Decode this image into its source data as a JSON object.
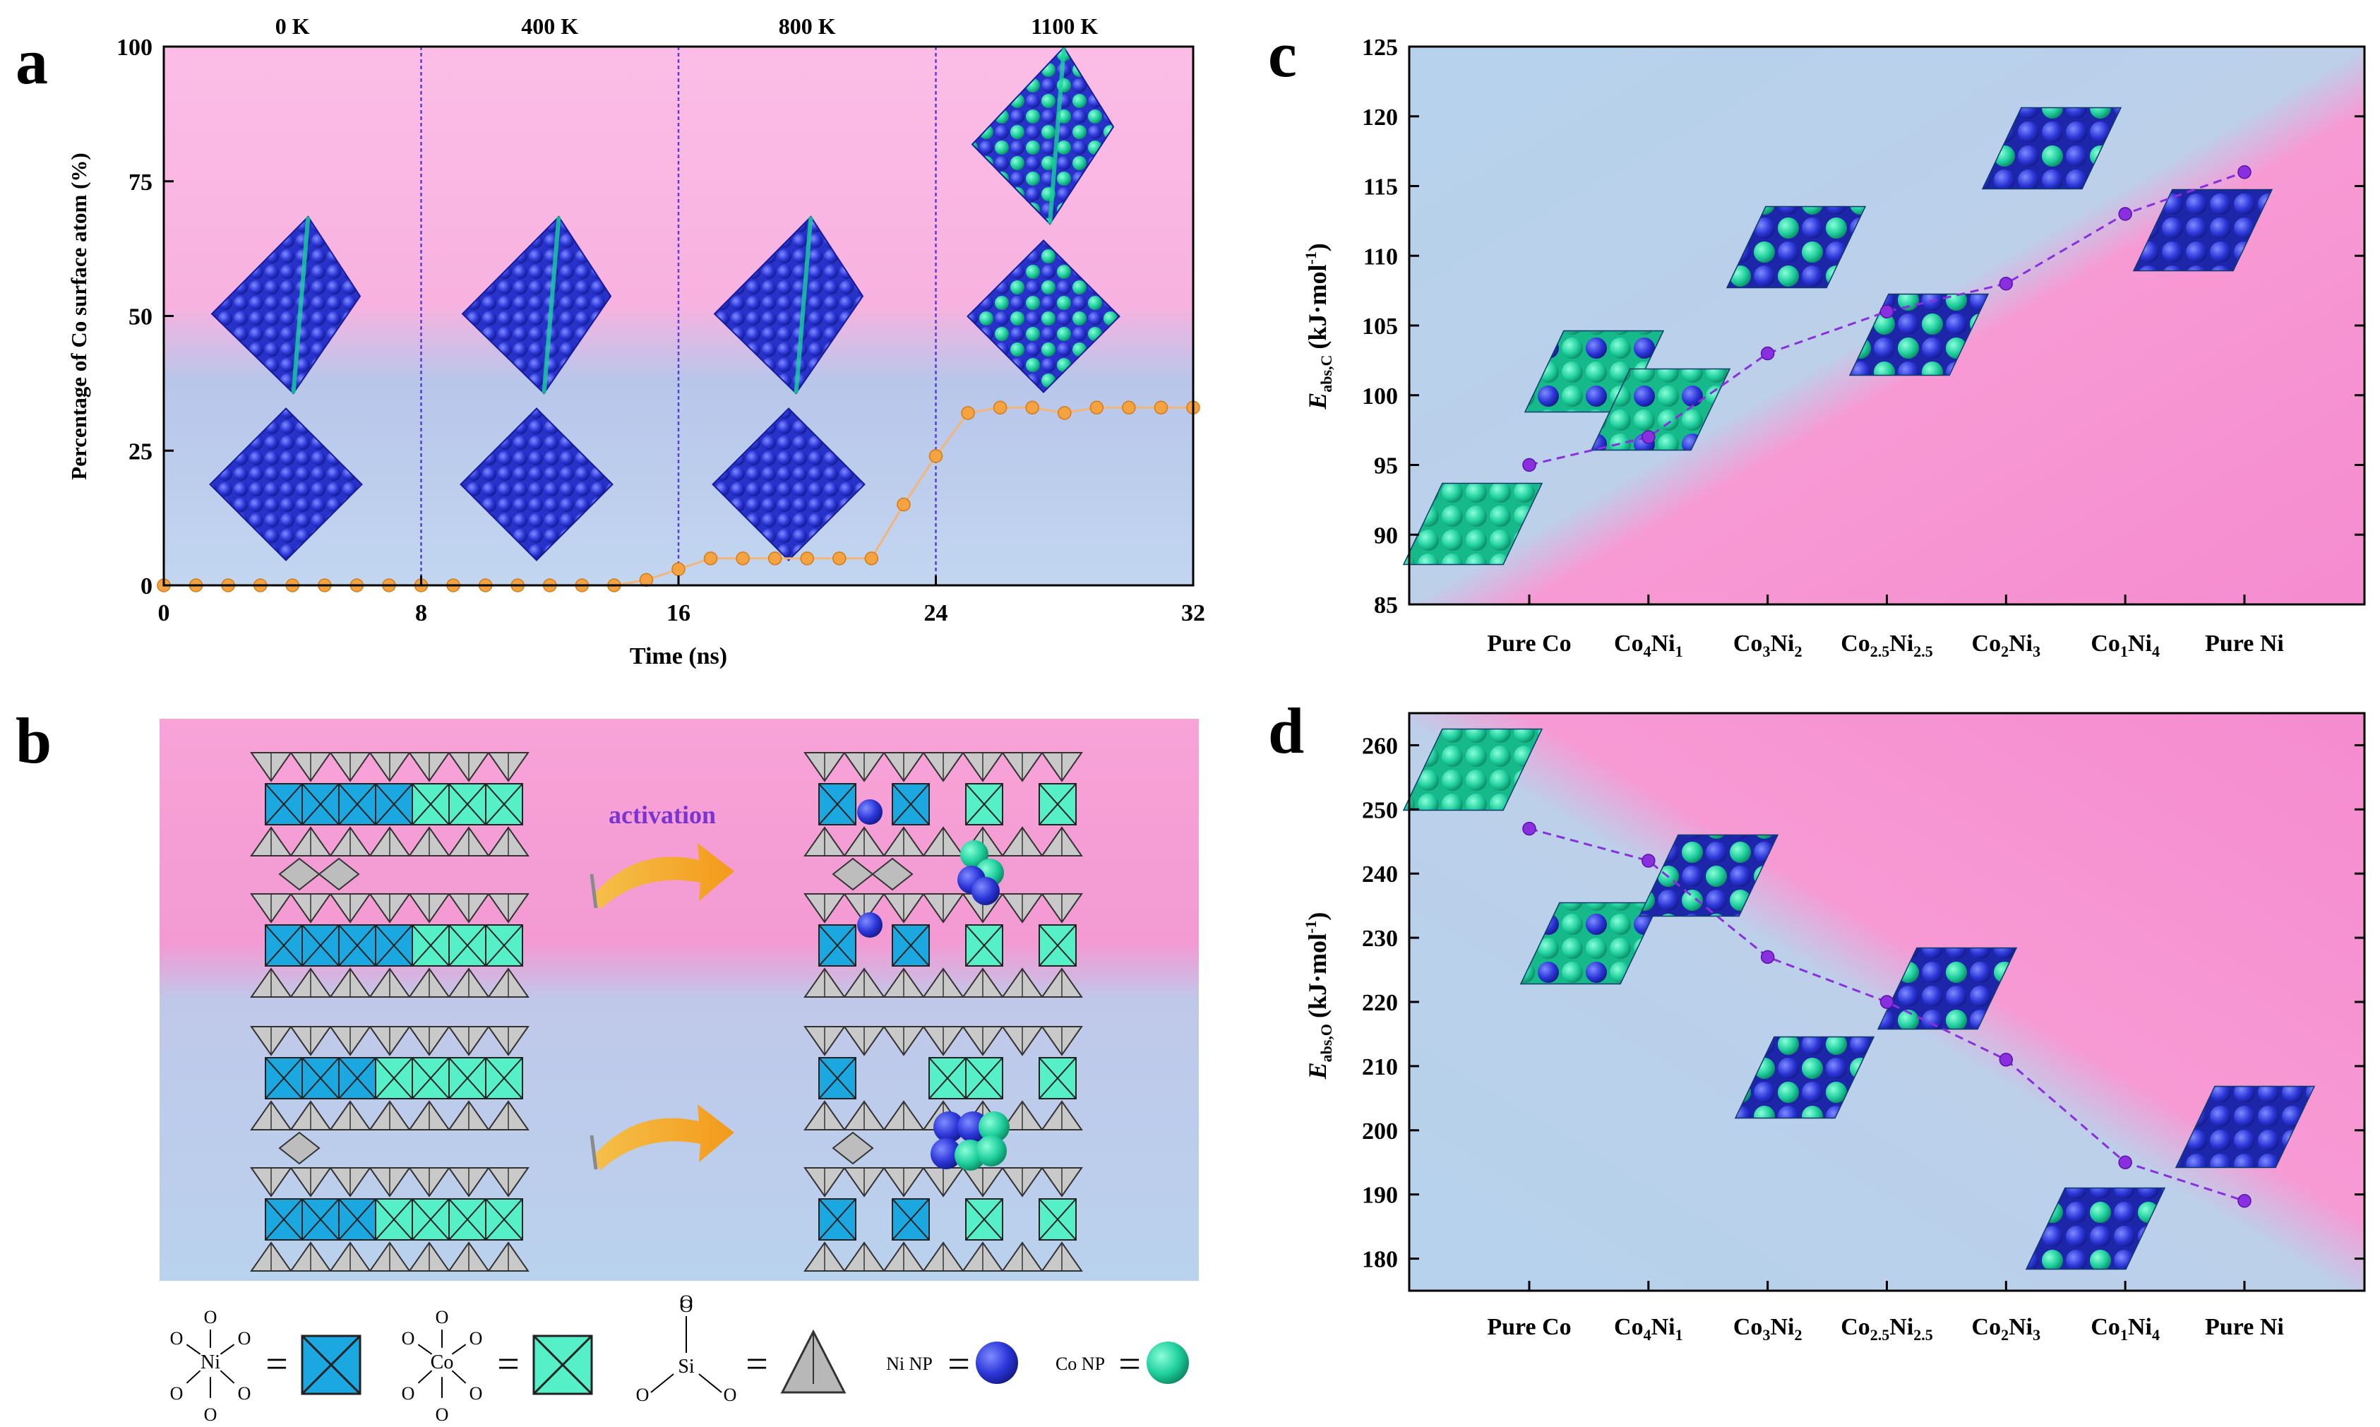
{
  "panels": {
    "a": {
      "letter": "a"
    },
    "b": {
      "letter": "b"
    },
    "c": {
      "letter": "c"
    },
    "d": {
      "letter": "d"
    }
  },
  "chart_data": [
    {
      "panel": "a",
      "type": "line",
      "xlabel": "Time (ns)",
      "ylabel": "Percentage of Co surface atom (%)",
      "xlim": [
        0,
        32
      ],
      "ylim": [
        0,
        100
      ],
      "xticks": [
        "0",
        "8",
        "16",
        "24",
        "32"
      ],
      "yticks": [
        "0",
        "25",
        "50",
        "75",
        "100"
      ],
      "stages": [
        {
          "label": "0 K",
          "x_start": 0,
          "x_end": 8
        },
        {
          "label": "400 K",
          "x_start": 8,
          "x_end": 16
        },
        {
          "label": "800 K",
          "x_start": 16,
          "x_end": 24
        },
        {
          "label": "1100 K",
          "x_start": 24,
          "x_end": 32
        }
      ],
      "stage_dividers": [
        8,
        16,
        24
      ],
      "x": [
        0,
        1,
        2,
        3,
        4,
        5,
        6,
        7,
        8,
        9,
        10,
        11,
        12,
        13,
        14,
        15,
        16,
        17,
        18,
        19,
        20,
        21,
        22,
        23,
        24,
        25,
        26,
        27,
        28,
        29,
        30,
        31,
        32
      ],
      "y": [
        0,
        0,
        0,
        0,
        0,
        0,
        0,
        0,
        0,
        0,
        0,
        0,
        0,
        0,
        0,
        1,
        3,
        5,
        5,
        5,
        5,
        5,
        5,
        15,
        24,
        32,
        33,
        33,
        32,
        33,
        33,
        33,
        33
      ]
    },
    {
      "panel": "c",
      "type": "line",
      "ylabel_main": "E",
      "ylabel_sub": "abs,C",
      "ylabel_unit": "(kJ·mol",
      "ylabel_sup": "-1",
      "ylabel_close": ")",
      "ylim": [
        85,
        125
      ],
      "yticks": [
        "85",
        "90",
        "95",
        "100",
        "105",
        "110",
        "115",
        "120",
        "125"
      ],
      "categories": [
        {
          "main": "Pure Co"
        },
        {
          "main": "Co",
          "s1": "4",
          "mid": "Ni",
          "s2": "1"
        },
        {
          "main": "Co",
          "s1": "3",
          "mid": "Ni",
          "s2": "2"
        },
        {
          "main": "Co",
          "s1": "2.5",
          "mid": "Ni",
          "s2": "2.5"
        },
        {
          "main": "Co",
          "s1": "2",
          "mid": "Ni",
          "s2": "3"
        },
        {
          "main": "Co",
          "s1": "1",
          "mid": "Ni",
          "s2": "4"
        },
        {
          "main": "Pure Ni"
        }
      ],
      "values": [
        95,
        97,
        103,
        106,
        108,
        113,
        116
      ]
    },
    {
      "panel": "d",
      "type": "line",
      "ylabel_main": "E",
      "ylabel_sub": "abs,O",
      "ylabel_unit": "(kJ·mol",
      "ylabel_sup": "-1",
      "ylabel_close": ")",
      "ylim": [
        175,
        265
      ],
      "yticks": [
        "180",
        "190",
        "200",
        "210",
        "220",
        "230",
        "240",
        "250",
        "260"
      ],
      "categories": [
        {
          "main": "Pure Co"
        },
        {
          "main": "Co",
          "s1": "4",
          "mid": "Ni",
          "s2": "1"
        },
        {
          "main": "Co",
          "s1": "3",
          "mid": "Ni",
          "s2": "2"
        },
        {
          "main": "Co",
          "s1": "2.5",
          "mid": "Ni",
          "s2": "2.5"
        },
        {
          "main": "Co",
          "s1": "2",
          "mid": "Ni",
          "s2": "3"
        },
        {
          "main": "Co",
          "s1": "1",
          "mid": "Ni",
          "s2": "4"
        },
        {
          "main": "Pure Ni"
        }
      ],
      "values": [
        247,
        242,
        227,
        220,
        211,
        195,
        189
      ]
    }
  ],
  "schematic": {
    "arrow_label": "activation",
    "legend": [
      {
        "center": "Ni",
        "eq": "=",
        "symbol": "ni-octahedron"
      },
      {
        "center": "Co",
        "eq": "=",
        "symbol": "co-octahedron"
      },
      {
        "center": "Si",
        "eq": "=",
        "symbol": "si-tetrahedron"
      },
      {
        "label": "Ni NP",
        "eq": "=",
        "symbol": "ni-sphere"
      },
      {
        "label": "Co NP",
        "eq": "=",
        "symbol": "co-sphere"
      }
    ],
    "oxygen_label": "O"
  },
  "colors": {
    "pink": "#f58fcf",
    "blue_bg": "#b9d3ec",
    "ni_blue": "#2e3de0",
    "co_green": "#1fd6a4",
    "octa_blue": "#1ba8e0",
    "octa_green": "#55f0c8",
    "marker_orange": "#f5a340",
    "marker_purple": "#8a2fe0"
  }
}
